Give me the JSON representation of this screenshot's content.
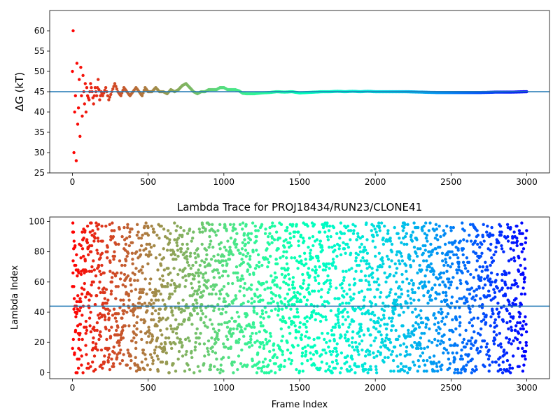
{
  "chart_data": [
    {
      "type": "scatter",
      "title": "",
      "xlabel": "",
      "ylabel": "ΔG (kT)",
      "xlim": [
        -150,
        3150
      ],
      "ylim": [
        25,
        65
      ],
      "xticks": [
        "0",
        "500",
        "1000",
        "1500",
        "2000",
        "2500",
        "3000"
      ],
      "yticks": [
        "25",
        "30",
        "35",
        "40",
        "45",
        "50",
        "55",
        "60"
      ],
      "reference_line": 45.0,
      "reference_line_color": "#1f77b4",
      "colormap": "rainbow_r",
      "marker_size": 3.5,
      "trace": {
        "x": [
          0,
          5,
          10,
          15,
          20,
          25,
          30,
          35,
          40,
          45,
          50,
          55,
          60,
          65,
          70,
          75,
          80,
          85,
          90,
          95,
          100,
          110,
          120,
          130,
          140,
          150,
          160,
          170,
          180,
          190,
          200,
          220,
          240,
          260,
          280,
          300,
          320,
          340,
          360,
          380,
          400,
          420,
          440,
          460,
          480,
          500,
          525,
          550,
          575,
          600,
          625,
          650,
          675,
          700,
          725,
          750,
          775,
          800,
          825,
          850,
          875,
          900,
          925,
          950,
          975,
          1000,
          1025,
          1050,
          1075,
          1100,
          1125,
          1150,
          1175,
          1200,
          1250,
          1300,
          1350,
          1400,
          1450,
          1500,
          1550,
          1600,
          1650,
          1700,
          1750,
          1800,
          1850,
          1900,
          1950,
          2000,
          2100,
          2200,
          2300,
          2400,
          2500,
          2600,
          2700,
          2800,
          2900,
          3000
        ],
        "y": [
          50,
          60,
          30,
          40,
          44,
          28,
          52,
          37,
          41,
          48,
          34,
          51,
          44,
          39,
          49,
          45,
          42,
          47,
          40,
          46,
          44,
          43,
          47,
          45,
          42,
          46,
          44,
          48,
          43,
          45,
          44,
          46,
          43,
          45,
          47,
          45,
          44,
          46,
          45,
          44,
          45,
          46,
          45,
          44,
          46,
          45,
          45,
          46,
          45,
          45,
          44.5,
          45.5,
          45,
          45.5,
          46.5,
          47,
          46,
          45,
          44.5,
          45,
          45,
          45.5,
          45.5,
          45.5,
          46,
          46,
          45.5,
          45.5,
          45.5,
          45.2,
          44.6,
          44.5,
          44.5,
          44.5,
          44.7,
          44.8,
          45,
          44.9,
          45,
          44.7,
          44.8,
          44.9,
          45,
          45,
          45.1,
          45,
          45.1,
          45,
          45.1,
          45,
          45,
          45,
          44.9,
          44.8,
          44.8,
          44.8,
          44.8,
          44.9,
          44.9,
          45
        ]
      }
    },
    {
      "type": "scatter",
      "title": "Lambda Trace for PROJ18434/RUN23/CLONE41",
      "xlabel": "Frame Index",
      "ylabel": "Lambda Index",
      "xlim": [
        -150,
        3150
      ],
      "ylim": [
        -4,
        103
      ],
      "xticks": [
        "0",
        "500",
        "1000",
        "1500",
        "2000",
        "2500",
        "3000"
      ],
      "yticks": [
        "0",
        "20",
        "40",
        "60",
        "80",
        "100"
      ],
      "reference_line": 44,
      "reference_line_color": "#1f77b4",
      "colormap": "rainbow_r",
      "marker_size": 3.5,
      "frames": 3000,
      "lambda_range": [
        0,
        99
      ]
    }
  ]
}
